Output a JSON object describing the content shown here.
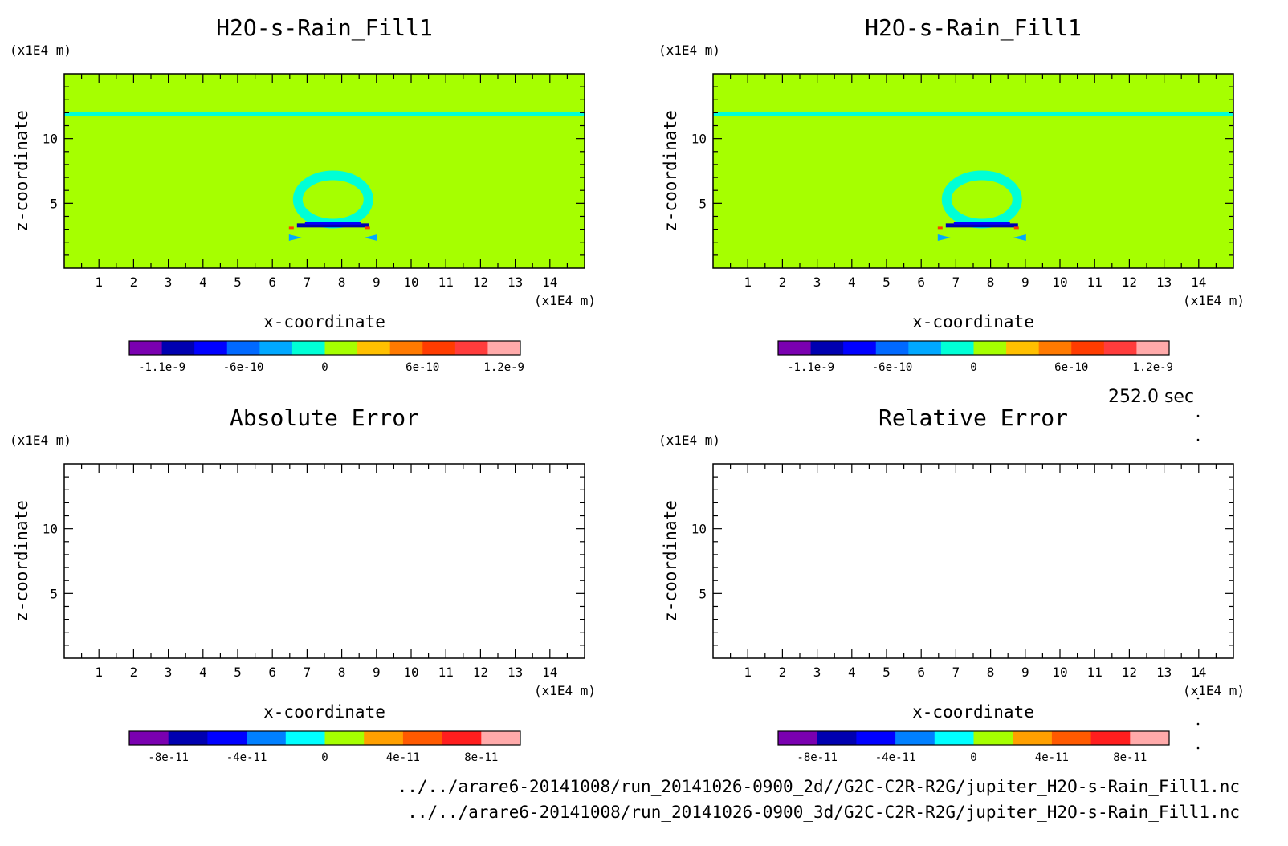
{
  "chart_data": [
    {
      "type": "heatmap",
      "title": "H2O-s-Rain_Fill1",
      "xlabel": "x-coordinate",
      "ylabel": "z-coordinate",
      "x_unit": "(x1E4 m)",
      "y_unit": "(x1E4 m)",
      "xlim": [
        0,
        15
      ],
      "ylim": [
        0,
        15
      ],
      "xticks": [
        "1",
        "2",
        "3",
        "4",
        "5",
        "6",
        "7",
        "8",
        "9",
        "10",
        "11",
        "12",
        "13",
        "14"
      ],
      "yticks": [
        "5",
        "10"
      ],
      "background_color": "#a6ff00",
      "features": [
        "thin band near z=12",
        "ring centered near x=7.7, z=5 with dark blue base near z=3.5"
      ],
      "colorbar": {
        "colors": [
          "#7a00b0",
          "#0000b0",
          "#0000ff",
          "#0069ff",
          "#00a8ff",
          "#00ffd6",
          "#a6ff00",
          "#ffc000",
          "#ff7a00",
          "#ff3c00",
          "#ff3c3c",
          "#ffaaaa"
        ],
        "ticks": [
          "-1.1e-9",
          "-6e-10",
          "0",
          "6e-10",
          "1.2e-9"
        ]
      }
    },
    {
      "type": "heatmap",
      "title": "H2O-s-Rain_Fill1",
      "xlabel": "x-coordinate",
      "ylabel": "z-coordinate",
      "x_unit": "(x1E4 m)",
      "y_unit": "(x1E4 m)",
      "xlim": [
        0,
        15
      ],
      "ylim": [
        0,
        15
      ],
      "xticks": [
        "1",
        "2",
        "3",
        "4",
        "5",
        "6",
        "7",
        "8",
        "9",
        "10",
        "11",
        "12",
        "13",
        "14"
      ],
      "yticks": [
        "5",
        "10"
      ],
      "background_color": "#a6ff00",
      "features": [
        "thin band near z=12",
        "ring centered near x=7.7, z=5 with dark blue base near z=3.5"
      ],
      "colorbar": {
        "colors": [
          "#7a00b0",
          "#0000b0",
          "#0000ff",
          "#0069ff",
          "#00a8ff",
          "#00ffd6",
          "#a6ff00",
          "#ffc000",
          "#ff7a00",
          "#ff3c00",
          "#ff3c3c",
          "#ffaaaa"
        ],
        "ticks": [
          "-1.1e-9",
          "-6e-10",
          "0",
          "6e-10",
          "1.2e-9"
        ]
      }
    },
    {
      "type": "heatmap",
      "title": "Absolute Error",
      "xlabel": "x-coordinate",
      "ylabel": "z-coordinate",
      "x_unit": "(x1E4 m)",
      "y_unit": "(x1E4 m)",
      "xlim": [
        0,
        15
      ],
      "ylim": [
        0,
        15
      ],
      "xticks": [
        "1",
        "2",
        "3",
        "4",
        "5",
        "6",
        "7",
        "8",
        "9",
        "10",
        "11",
        "12",
        "13",
        "14"
      ],
      "yticks": [
        "5",
        "10"
      ],
      "background_color": "#ffffff",
      "features": [],
      "colorbar": {
        "colors": [
          "#7a00b0",
          "#0000b0",
          "#0000ff",
          "#0080ff",
          "#00ffff",
          "#a6ff00",
          "#ffa000",
          "#ff5a00",
          "#ff1e1e",
          "#ffaaaa"
        ],
        "ticks": [
          "-8e-11",
          "-4e-11",
          "0",
          "4e-11",
          "8e-11"
        ]
      }
    },
    {
      "type": "heatmap",
      "title": "Relative Error",
      "xlabel": "x-coordinate",
      "ylabel": "z-coordinate",
      "x_unit": "(x1E4 m)",
      "y_unit": "(x1E4 m)",
      "xlim": [
        0,
        15
      ],
      "ylim": [
        0,
        15
      ],
      "xticks": [
        "1",
        "2",
        "3",
        "4",
        "5",
        "6",
        "7",
        "8",
        "9",
        "10",
        "11",
        "12",
        "13",
        "14"
      ],
      "yticks": [
        "5",
        "10"
      ],
      "background_color": "#ffffff",
      "features": [],
      "colorbar": {
        "colors": [
          "#7a00b0",
          "#0000b0",
          "#0000ff",
          "#0080ff",
          "#00ffff",
          "#a6ff00",
          "#ffa000",
          "#ff5a00",
          "#ff1e1e",
          "#ffaaaa"
        ],
        "ticks": [
          "-8e-11",
          "-4e-11",
          "0",
          "4e-11",
          "8e-11"
        ]
      }
    }
  ],
  "time_label": "252.0 sec",
  "file_paths": [
    "../../arare6-20141008/run_20141026-0900_2d//G2C-C2R-R2G/jupiter_H2O-s-Rain_Fill1.nc",
    "../../arare6-20141008/run_20141026-0900_3d/G2C-C2R-R2G/jupiter_H2O-s-Rain_Fill1.nc"
  ]
}
